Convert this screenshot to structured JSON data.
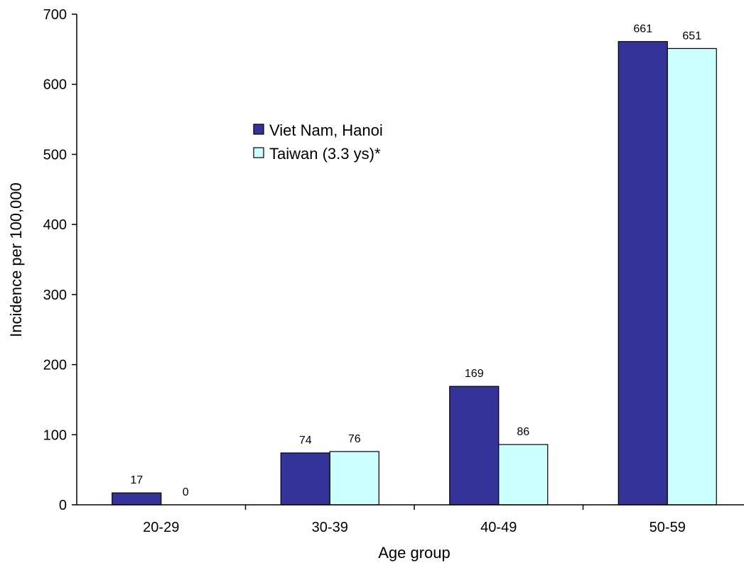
{
  "chart_data": {
    "type": "bar",
    "categories": [
      "20-29",
      "30-39",
      "40-49",
      "50-59"
    ],
    "series": [
      {
        "name": "Viet Nam, Hanoi",
        "values": [
          17,
          74,
          169,
          661
        ],
        "color": "#333399"
      },
      {
        "name": "Taiwan (3.3 ys)*",
        "values": [
          0,
          76,
          86,
          651
        ],
        "color": "#ccffff"
      }
    ],
    "data_labels": [
      [
        "17",
        "74",
        "169",
        "661"
      ],
      [
        "0",
        "76",
        "86",
        "651"
      ]
    ],
    "xlabel": "Age group",
    "ylabel": "Incidence per 100,000",
    "ylim": [
      0,
      700
    ],
    "yticks": [
      0,
      100,
      200,
      300,
      400,
      500,
      600,
      700
    ],
    "grid": false,
    "legend_position": "upper-center"
  }
}
